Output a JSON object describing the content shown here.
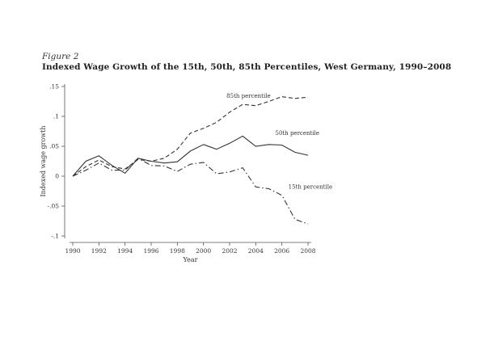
{
  "figure": {
    "label": "Figure 2",
    "title": "Indexed Wage Growth of the 15th, 50th, 85th Percentiles, West Germany, 1990–2008"
  },
  "chart_data": {
    "type": "line",
    "xlabel": "Year",
    "ylabel": "Indexed wage growth",
    "xlim": [
      1990,
      2008
    ],
    "ylim": [
      -0.1,
      0.15
    ],
    "x_ticks": [
      1990,
      1992,
      1994,
      1996,
      1998,
      2000,
      2002,
      2004,
      2006,
      2008
    ],
    "x_tick_labels": [
      "1990",
      "1992",
      "1994",
      "1996",
      "1998",
      "2000",
      "2002",
      "2004",
      "2006",
      "2008"
    ],
    "y_ticks": [
      -0.1,
      -0.05,
      0,
      0.05,
      0.1,
      0.15
    ],
    "y_tick_labels": [
      "-.1",
      "-.05",
      "0",
      ".05",
      ".1",
      ".15"
    ],
    "grid": false,
    "x": [
      1990,
      1991,
      1992,
      1993,
      1994,
      1995,
      1996,
      1997,
      1998,
      1999,
      2000,
      2001,
      2002,
      2003,
      2004,
      2005,
      2006,
      2007,
      2008
    ],
    "series": [
      {
        "name": "85th percentile",
        "style": "dashed",
        "values": [
          0,
          0.016,
          0.027,
          0.016,
          0.012,
          0.028,
          0.025,
          0.03,
          0.045,
          0.072,
          0.08,
          0.09,
          0.107,
          0.12,
          0.118,
          0.125,
          0.133,
          0.13,
          0.132
        ]
      },
      {
        "name": "50th percentile",
        "style": "solid",
        "values": [
          0,
          0.025,
          0.034,
          0.018,
          0.005,
          0.03,
          0.025,
          0.022,
          0.024,
          0.042,
          0.053,
          0.045,
          0.055,
          0.067,
          0.05,
          0.053,
          0.052,
          0.04,
          0.035
        ]
      },
      {
        "name": "15th percentile",
        "style": "dash-dot",
        "values": [
          0,
          0.01,
          0.022,
          0.01,
          0.01,
          0.03,
          0.018,
          0.017,
          0.008,
          0.02,
          0.023,
          0.004,
          0.007,
          0.014,
          -0.018,
          -0.021,
          -0.032,
          -0.072,
          -0.08
        ]
      }
    ]
  },
  "colors": {
    "line": "#333333",
    "axis": "#555555"
  }
}
